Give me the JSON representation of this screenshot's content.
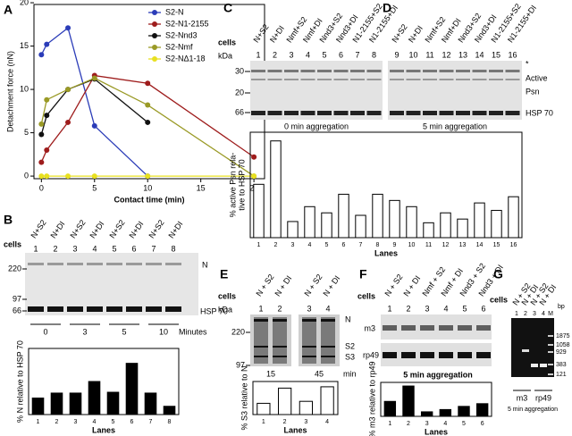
{
  "chart_data": [
    {
      "type": "line",
      "panel": "A",
      "xlabel": "Contact time (min)",
      "ylabel": "Detachment force (nN)",
      "x": [
        0,
        0.5,
        2.5,
        5,
        10,
        20
      ],
      "xlim": [
        -0.7,
        21
      ],
      "ylim": [
        -0.3,
        19.8
      ],
      "xticks": [
        0,
        5,
        10,
        15,
        20
      ],
      "yticks": [
        0,
        5,
        10,
        15,
        20
      ],
      "legend": "upper right",
      "series": [
        {
          "name": "S2-N",
          "color": "#2b3cb8",
          "values": [
            14,
            15.2,
            17.1,
            5.8,
            0,
            null
          ]
        },
        {
          "name": "S2-N1-2155",
          "color": "#9e1c1c",
          "values": [
            1.6,
            3,
            6.2,
            11.6,
            10.7,
            2.2
          ]
        },
        {
          "name": "S2-Nnd3",
          "color": "#111111",
          "values": [
            4.8,
            7,
            10,
            11.2,
            6.2,
            null
          ]
        },
        {
          "name": "S2-Nmf",
          "color": "#9a9a26",
          "values": [
            6,
            8.8,
            10,
            11.3,
            8.2,
            0
          ]
        },
        {
          "name": "S2-NΔ1-18",
          "color": "#e8e020",
          "values": [
            0,
            0,
            0,
            0,
            0,
            0
          ]
        }
      ]
    },
    {
      "type": "bar",
      "ylabel": "% N relative to HSP 70",
      "xlabel": "Lanes",
      "categories": [
        "1",
        "2",
        "3",
        "4",
        "5",
        "6",
        "7",
        "8"
      ],
      "values": [
        20,
        26,
        26,
        40,
        27,
        62,
        26,
        10
      ],
      "ylim": [
        0,
        80
      ],
      "color": "#000000"
    },
    {
      "type": "bar",
      "ylabel": [
        "% active Psn rela-",
        "tive to HSP 70"
      ],
      "xlabel": "Lanes",
      "categories": [
        "1",
        "2",
        "3",
        "4",
        "5",
        "6",
        "7",
        "8",
        "9",
        "10",
        "11",
        "12",
        "13",
        "14",
        "15",
        "16"
      ],
      "values": [
        43,
        78,
        13,
        25,
        20,
        35,
        18,
        35,
        30,
        25,
        12,
        20,
        15,
        28,
        22,
        33
      ],
      "ylim": [
        0,
        85
      ],
      "color": "#ffffff"
    },
    {
      "type": "bar",
      "ylabel": "% S3 relative to N",
      "xlabel": "Lanes",
      "categories": [
        "1",
        "2",
        "3",
        "4"
      ],
      "values": [
        17,
        40,
        20,
        42
      ],
      "ylim": [
        0,
        50
      ],
      "color": "#ffffff"
    },
    {
      "type": "bar",
      "ylabel": "% m3 relative to rp49",
      "xlabel": "Lanes",
      "categories": [
        "1",
        "2",
        "3",
        "4",
        "5",
        "6"
      ],
      "values": [
        33,
        67,
        10,
        15,
        22,
        28
      ],
      "ylim": [
        0,
        75
      ],
      "color": "#000000"
    }
  ],
  "gels": {
    "B": {
      "panel": "B",
      "cells": "cells",
      "lanes": [
        "N+S2",
        "N+DI",
        "N+S2",
        "N+DI",
        "N+S2",
        "N+DI",
        "N+S2",
        "N+DI"
      ],
      "numbers": [
        "1",
        "2",
        "3",
        "4",
        "5",
        "6",
        "7",
        "8"
      ],
      "markers": [
        "220",
        "97",
        "66"
      ],
      "bands": [
        "N",
        "HSP 70"
      ],
      "times": [
        "0",
        "3",
        "5",
        "10"
      ],
      "unit": "Minutes"
    },
    "C": {
      "panel": "C",
      "cells": "cells",
      "kda": "kDa",
      "lanes": [
        "N+S2",
        "N+DI",
        "Nmf+S2",
        "Nmf+DI",
        "Nnd3+S2",
        "Nnd3+DI",
        "N1-2155+S2",
        "N1-2155+DI"
      ],
      "numbers": [
        "1",
        "2",
        "3",
        "4",
        "5",
        "6",
        "7",
        "8"
      ],
      "markers": [
        "30",
        "20",
        "66"
      ],
      "caption": "0 min aggregation"
    },
    "D": {
      "panel": "D",
      "lanes": [
        "N+S2",
        "N+DI",
        "Nmf+S2",
        "Nmf+DI",
        "Nnd3+S2",
        "Nnd3+DI",
        "N1-2155+S2",
        "N1-2155+DI"
      ],
      "numbers": [
        "9",
        "10",
        "11",
        "12",
        "13",
        "14",
        "15",
        "16"
      ],
      "bands": [
        "*",
        "Active",
        "Psn",
        "HSP 70"
      ],
      "caption": "5 min aggregation"
    },
    "E": {
      "panel": "E",
      "cells": "cells",
      "kda": "kDa",
      "lanes": [
        "N + S2",
        "N + DI",
        "N + S2",
        "N + DI"
      ],
      "numbers": [
        "1",
        "2",
        "3",
        "4"
      ],
      "markers": [
        "220",
        "97"
      ],
      "bands": [
        "N",
        "S2",
        "S3"
      ],
      "times": [
        "15",
        "45"
      ],
      "unit": "min"
    },
    "F": {
      "panel": "F",
      "cells": "cells",
      "lanes": [
        "N + S2",
        "N + DI",
        "Nmf + S2",
        "Nmf + DI",
        "Nnd3 + S2",
        "Nnd3 + DI"
      ],
      "numbers": [
        "1",
        "2",
        "3",
        "4",
        "5",
        "6"
      ],
      "bands": [
        "m3",
        "rp49"
      ],
      "caption": "5 min aggregation"
    },
    "G": {
      "panel": "G",
      "cells": "cells",
      "lanes": [
        "N + S2",
        "N + DI",
        "N + S2",
        "N + DI"
      ],
      "numbers": [
        "1",
        "2",
        "3",
        "4",
        "M"
      ],
      "unit": "bp",
      "markers": [
        "1875",
        "1058",
        "929",
        "383",
        "121"
      ],
      "bands": [
        "m3",
        "rp49"
      ],
      "caption": "5 min aggregation"
    }
  }
}
